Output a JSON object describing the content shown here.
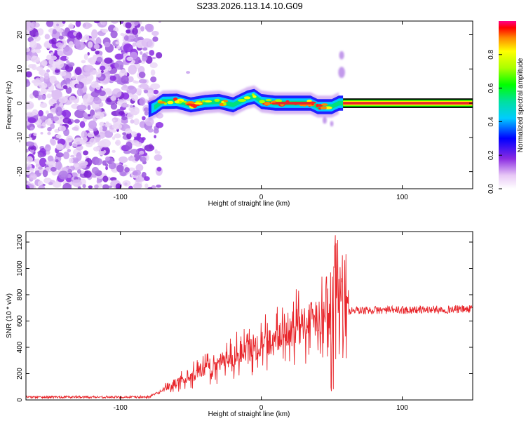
{
  "title": "S233.2026.113.14.10.G09",
  "colors": {
    "snr_line": "#e8262b",
    "noise_purple": "#8a2be2",
    "track_core": "#e8262b",
    "background": "#ffffff"
  },
  "chart_data": [
    {
      "type": "heatmap",
      "name": "spectrogram",
      "xlabel": "Height of straight line (km)",
      "ylabel": "Frequency (Hz)",
      "xlim": [
        -167,
        150
      ],
      "ylim": [
        -25,
        24
      ],
      "x_ticks": [
        -100,
        0,
        100
      ],
      "y_ticks": [
        -20,
        -10,
        0,
        10,
        20
      ],
      "noise_region_x": [
        -167,
        -76
      ],
      "track_center_hz": [
        [
          -80,
          -2
        ],
        [
          -75,
          -1
        ],
        [
          -70,
          0.5
        ],
        [
          -60,
          0.6
        ],
        [
          -50,
          -0.5
        ],
        [
          -40,
          0.2
        ],
        [
          -30,
          0.5
        ],
        [
          -20,
          -0.5
        ],
        [
          -10,
          1.5
        ],
        [
          -5,
          2
        ],
        [
          0,
          0.5
        ],
        [
          10,
          0
        ],
        [
          35,
          0
        ],
        [
          40,
          -1
        ],
        [
          45,
          -1
        ],
        [
          50,
          -1
        ],
        [
          55,
          0
        ],
        [
          60,
          0
        ],
        [
          150,
          0
        ]
      ],
      "colorbar": {
        "label": "Normalized spectral amplitude",
        "range": [
          0,
          1
        ],
        "ticks": [
          0.0,
          0.2,
          0.4,
          0.6,
          0.8
        ],
        "tick_labels": [
          "0.0",
          "0.2",
          "0.4",
          "0.6",
          "0.8"
        ]
      }
    },
    {
      "type": "line",
      "name": "snr",
      "xlabel": "Height of straight line (km)",
      "ylabel": "SNR (10 * v/v)",
      "xlim": [
        -167,
        150
      ],
      "ylim": [
        0,
        1280
      ],
      "x_ticks": [
        -100,
        0,
        100
      ],
      "y_ticks": [
        0,
        200,
        400,
        600,
        800,
        1000,
        1200
      ],
      "baseline_profile": [
        [
          -167,
          22
        ],
        [
          -80,
          22
        ],
        [
          -72,
          60
        ],
        [
          -60,
          130
        ],
        [
          -40,
          230
        ],
        [
          -20,
          330
        ],
        [
          0,
          420
        ],
        [
          20,
          520
        ],
        [
          35,
          620
        ],
        [
          45,
          660
        ],
        [
          48,
          660
        ],
        [
          60,
          660
        ],
        [
          65,
          680
        ],
        [
          150,
          690
        ]
      ],
      "oscillation_x": [
        45,
        62
      ],
      "oscillation_range": [
        40,
        1280
      ]
    }
  ]
}
